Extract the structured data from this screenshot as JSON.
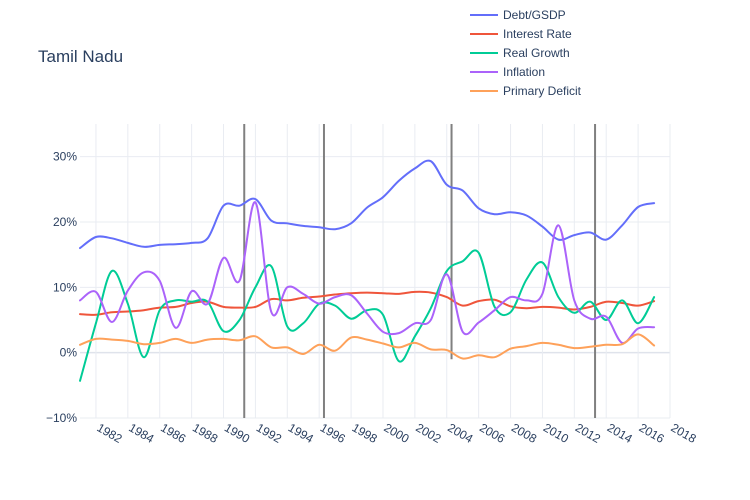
{
  "chart_data": {
    "type": "line",
    "title": "Tamil Nadu",
    "xlabel": "",
    "ylabel": "",
    "xlim": [
      1981,
      2018
    ],
    "ylim": [
      -10,
      35
    ],
    "y_ticks": [
      -10,
      0,
      10,
      20,
      30
    ],
    "y_tick_labels": [
      "−10%",
      "0%",
      "10%",
      "20%",
      "30%"
    ],
    "x_ticks": [
      1982,
      1984,
      1986,
      1988,
      1990,
      1992,
      1994,
      1996,
      1998,
      2000,
      2002,
      2004,
      2006,
      2008,
      2010,
      2012,
      2014,
      2016,
      2018
    ],
    "x_tick_labels": [
      "1982",
      "1984",
      "1986",
      "1988",
      "1990",
      "1992",
      "1994",
      "1996",
      "1998",
      "2000",
      "2002",
      "2004",
      "2006",
      "2008",
      "2010",
      "2012",
      "2014",
      "2016",
      "2018"
    ],
    "grid": true,
    "legend_position": "top-right",
    "vertical_lines": [
      {
        "x": 1991.3,
        "ymin": -10,
        "ymax": 35
      },
      {
        "x": 1996.3,
        "ymin": -10,
        "ymax": 35
      },
      {
        "x": 2004.3,
        "ymin": -1,
        "ymax": 35
      },
      {
        "x": 2013.3,
        "ymin": -10,
        "ymax": 35
      }
    ],
    "x": [
      1981,
      1982,
      1983,
      1984,
      1985,
      1986,
      1987,
      1988,
      1989,
      1990,
      1991,
      1992,
      1993,
      1994,
      1995,
      1996,
      1997,
      1998,
      1999,
      2000,
      2001,
      2002,
      2003,
      2004,
      2005,
      2006,
      2007,
      2008,
      2009,
      2010,
      2011,
      2012,
      2013,
      2014,
      2015,
      2016,
      2017
    ],
    "series": [
      {
        "name": "Debt/GSDP",
        "color": "#636efa",
        "values": [
          16,
          17.7,
          17.5,
          16.8,
          16.2,
          16.5,
          16.6,
          16.8,
          17.5,
          22.5,
          22.5,
          23.5,
          20.2,
          19.8,
          19.4,
          19.2,
          18.9,
          19.8,
          22.2,
          23.8,
          26.3,
          28.2,
          29.3,
          25.7,
          24.8,
          22.1,
          21.2,
          21.5,
          21.0,
          19.3,
          17.3,
          18.0,
          18.4,
          17.3,
          19.5,
          22.3,
          22.9
        ]
      },
      {
        "name": "Interest Rate",
        "color": "#ef553b",
        "values": [
          5.9,
          5.8,
          6.2,
          6.3,
          6.5,
          6.9,
          7.0,
          7.6,
          7.8,
          7.0,
          6.9,
          7.0,
          8.2,
          8.0,
          8.4,
          8.6,
          8.9,
          9.1,
          9.2,
          9.1,
          9.0,
          9.3,
          9.2,
          8.5,
          7.2,
          7.9,
          8.1,
          7.1,
          6.8,
          7.0,
          6.9,
          6.6,
          7.0,
          7.8,
          7.6,
          7.2,
          7.9
        ]
      },
      {
        "name": "Real Growth",
        "color": "#00cc96",
        "values": [
          -4.3,
          4.5,
          12.5,
          7.5,
          -0.7,
          6.5,
          8.0,
          7.8,
          7.8,
          3.3,
          5.0,
          10.0,
          13.2,
          4.0,
          4.5,
          7.5,
          7.2,
          5.2,
          6.5,
          5.8,
          -1.3,
          2.5,
          6.8,
          12.5,
          14.0,
          15.3,
          7.0,
          6.2,
          11.2,
          13.8,
          8.5,
          6.1,
          7.8,
          5.0,
          8.0,
          4.5,
          8.5
        ]
      },
      {
        "name": "Inflation",
        "color": "#ab63fa",
        "values": [
          8.0,
          9.3,
          4.7,
          9.5,
          12.3,
          11.0,
          3.8,
          9.4,
          7.5,
          14.5,
          11.0,
          23.0,
          6.2,
          10.0,
          9.0,
          7.5,
          8.5,
          8.8,
          6.0,
          3.2,
          3.0,
          4.5,
          5.0,
          12.0,
          3.2,
          4.6,
          6.5,
          8.5,
          8.0,
          9.0,
          19.5,
          8.0,
          5.2,
          5.5,
          1.5,
          3.7,
          3.9
        ]
      },
      {
        "name": "Primary Deficit",
        "color": "#fea15a",
        "values": [
          1.2,
          2.1,
          2.0,
          1.8,
          1.3,
          1.5,
          2.1,
          1.5,
          2.0,
          2.1,
          1.9,
          2.5,
          0.8,
          0.8,
          -0.2,
          1.2,
          0.3,
          2.3,
          2.0,
          1.4,
          0.8,
          1.5,
          0.5,
          0.4,
          -0.9,
          -0.4,
          -0.7,
          0.6,
          1.0,
          1.5,
          1.2,
          0.7,
          0.9,
          1.2,
          1.3,
          2.8,
          1.1
        ]
      }
    ]
  }
}
